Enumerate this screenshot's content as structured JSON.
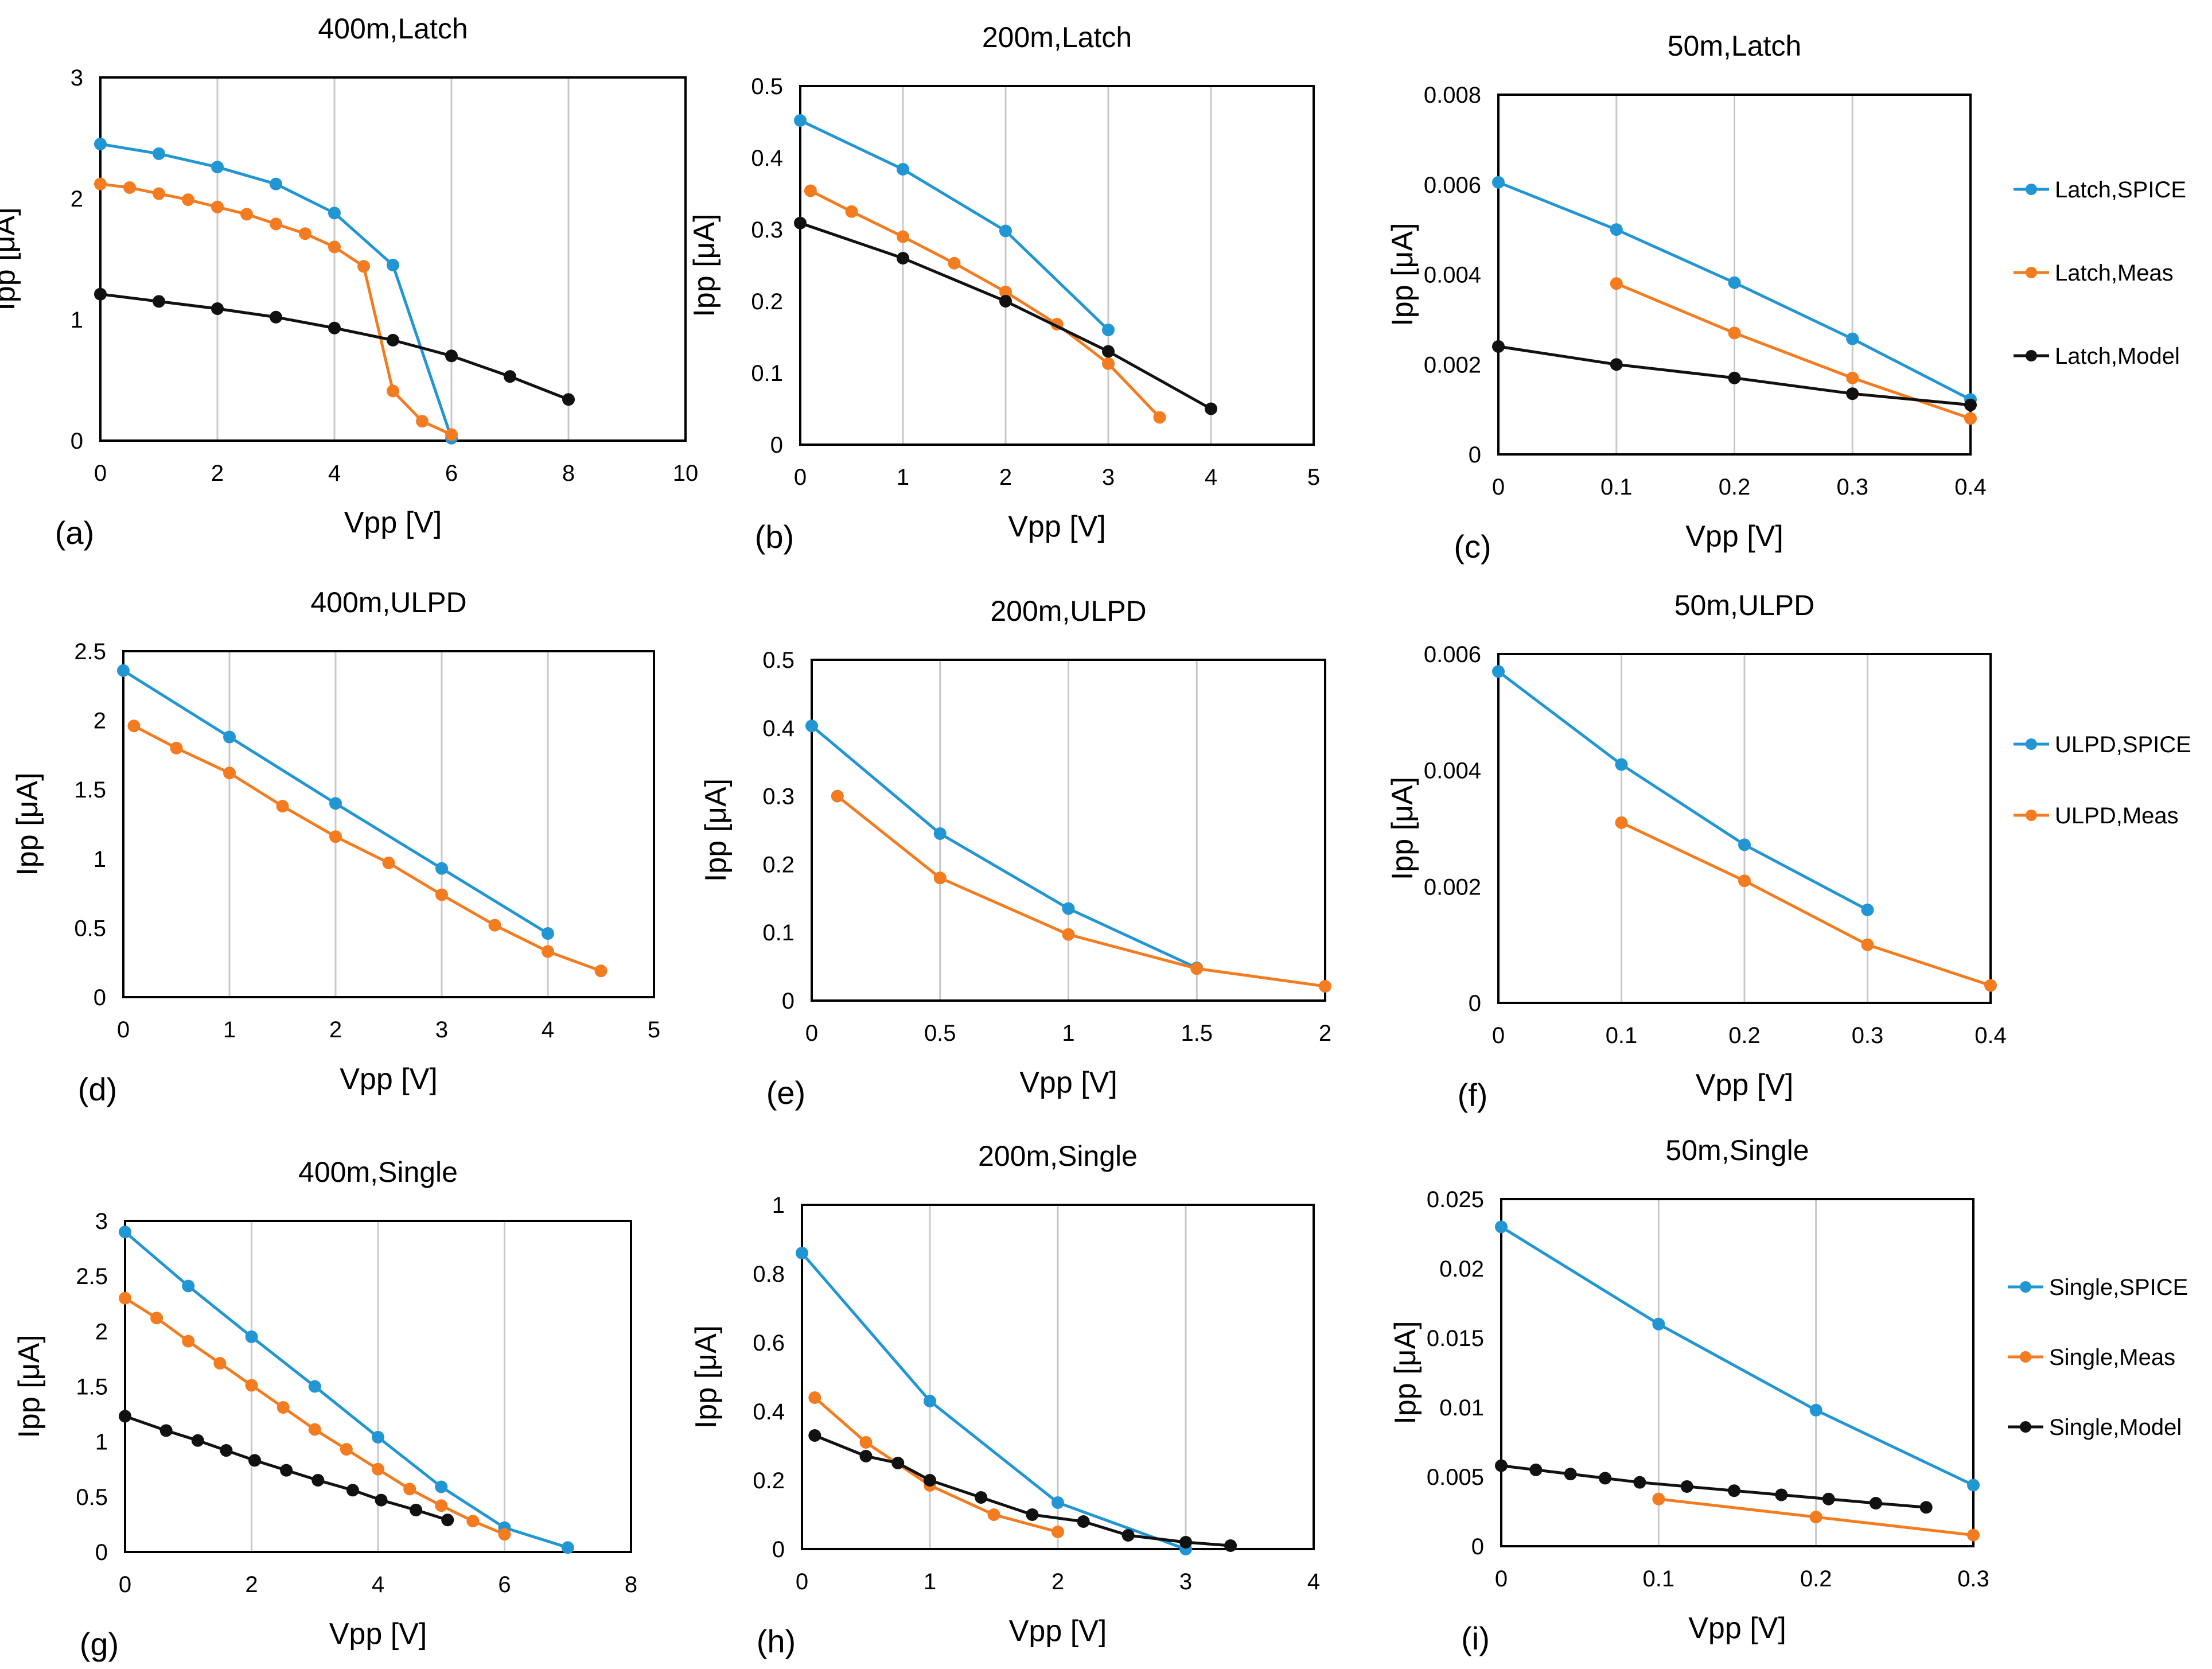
{
  "series_colors": {
    "SPICE": "#2196D3",
    "Meas": "#F47C20",
    "Model": "#111111"
  },
  "legends": [
    {
      "entries": [
        {
          "label": "Latch,SPICE",
          "key": "SPICE"
        },
        {
          "label": "Latch,Meas",
          "key": "Meas"
        },
        {
          "label": "Latch,Model",
          "key": "Model"
        }
      ]
    },
    {
      "entries": [
        {
          "label": "ULPD,SPICE",
          "key": "SPICE"
        },
        {
          "label": "ULPD,Meas",
          "key": "Meas"
        }
      ]
    },
    {
      "entries": [
        {
          "label": "Single,SPICE",
          "key": "SPICE"
        },
        {
          "label": "Single,Meas",
          "key": "Meas"
        },
        {
          "label": "Single,Model",
          "key": "Model"
        }
      ]
    }
  ],
  "chart_data": [
    {
      "type": "line",
      "title": "400m,Latch",
      "panel": "(a)",
      "xlabel": "Vpp [V]",
      "ylabel": "Ipp [μA]",
      "xlim": [
        0,
        10
      ],
      "xticks": [
        "0",
        "2",
        "4",
        "6",
        "8",
        "10"
      ],
      "ylim": [
        0,
        3
      ],
      "yticks": [
        "0",
        "1",
        "2",
        "3"
      ],
      "series": [
        {
          "name": "Latch,SPICE",
          "key": "SPICE",
          "x": [
            0,
            1,
            2,
            3,
            4,
            5,
            6
          ],
          "y": [
            2.45,
            2.37,
            2.26,
            2.12,
            1.88,
            1.45,
            0.02
          ]
        },
        {
          "name": "Latch,Meas",
          "key": "Meas",
          "x": [
            0,
            0.5,
            1,
            1.5,
            2,
            2.5,
            3,
            3.5,
            4,
            4.5,
            5,
            5.5,
            6
          ],
          "y": [
            2.12,
            2.09,
            2.04,
            1.99,
            1.93,
            1.87,
            1.79,
            1.71,
            1.6,
            1.44,
            0.41,
            0.16,
            0.05
          ]
        },
        {
          "name": "Latch,Model",
          "key": "Model",
          "x": [
            0,
            1,
            2,
            3,
            4,
            5,
            6,
            7,
            8
          ],
          "y": [
            1.21,
            1.15,
            1.09,
            1.02,
            0.93,
            0.83,
            0.7,
            0.53,
            0.34
          ]
        }
      ]
    },
    {
      "type": "line",
      "title": "200m,Latch",
      "panel": "(b)",
      "xlabel": "Vpp [V]",
      "ylabel": "Ipp [μA]",
      "xlim": [
        0,
        5
      ],
      "xticks": [
        "0",
        "1",
        "2",
        "3",
        "4",
        "5"
      ],
      "ylim": [
        0,
        0.5
      ],
      "yticks": [
        "0",
        "0.1",
        "0.2",
        "0.3",
        "0.4",
        "0.5"
      ],
      "series": [
        {
          "name": "Latch,SPICE",
          "key": "SPICE",
          "x": [
            0,
            1,
            2,
            3
          ],
          "y": [
            0.452,
            0.384,
            0.298,
            0.16
          ]
        },
        {
          "name": "Latch,Meas",
          "key": "Meas",
          "x": [
            0.1,
            0.5,
            1,
            1.5,
            2,
            2.5,
            3,
            3.5
          ],
          "y": [
            0.354,
            0.325,
            0.29,
            0.253,
            0.213,
            0.168,
            0.113,
            0.038
          ]
        },
        {
          "name": "Latch,Model",
          "key": "Model",
          "x": [
            0,
            1,
            2,
            3,
            4
          ],
          "y": [
            0.309,
            0.26,
            0.2,
            0.13,
            0.05
          ]
        }
      ]
    },
    {
      "type": "line",
      "title": "50m,Latch",
      "panel": "(c)",
      "xlabel": "Vpp [V]",
      "ylabel": "Ipp [μA]",
      "xlim": [
        0,
        0.4
      ],
      "xticks": [
        "0",
        "0.1",
        "0.2",
        "0.3",
        "0.4"
      ],
      "ylim": [
        0,
        0.008
      ],
      "yticks": [
        "0",
        "0.002",
        "0.004",
        "0.006",
        "0.008"
      ],
      "series": [
        {
          "name": "Latch,SPICE",
          "key": "SPICE",
          "x": [
            0,
            0.1,
            0.2,
            0.3,
            0.4
          ],
          "y": [
            0.00605,
            0.005,
            0.00382,
            0.00257,
            0.00122
          ]
        },
        {
          "name": "Latch,Meas",
          "key": "Meas",
          "x": [
            0.1,
            0.2,
            0.3,
            0.4
          ],
          "y": [
            0.0038,
            0.0027,
            0.0017,
            0.0008
          ]
        },
        {
          "name": "Latch,Model",
          "key": "Model",
          "x": [
            0,
            0.1,
            0.2,
            0.3,
            0.4
          ],
          "y": [
            0.0024,
            0.002,
            0.0017,
            0.00135,
            0.0011
          ]
        }
      ]
    },
    {
      "type": "line",
      "title": "400m,ULPD",
      "panel": "(d)",
      "xlabel": "Vpp [V]",
      "ylabel": "Ipp [μA]",
      "xlim": [
        0,
        5
      ],
      "xticks": [
        "0",
        "1",
        "2",
        "3",
        "4",
        "5"
      ],
      "ylim": [
        0,
        2.5
      ],
      "yticks": [
        "0",
        "0.5",
        "1",
        "1.5",
        "2",
        "2.5"
      ],
      "series": [
        {
          "name": "ULPD,SPICE",
          "key": "SPICE",
          "x": [
            0,
            1,
            2,
            3,
            4
          ],
          "y": [
            2.36,
            1.88,
            1.4,
            0.93,
            0.46
          ]
        },
        {
          "name": "ULPD,Meas",
          "key": "Meas",
          "x": [
            0.1,
            0.5,
            1,
            1.5,
            2,
            2.5,
            3,
            3.5,
            4,
            4.5
          ],
          "y": [
            1.96,
            1.8,
            1.62,
            1.38,
            1.16,
            0.97,
            0.74,
            0.52,
            0.33,
            0.19
          ]
        }
      ]
    },
    {
      "type": "line",
      "title": "200m,ULPD",
      "panel": "(e)",
      "xlabel": "Vpp [V]",
      "ylabel": "Ipp [μA]",
      "xlim": [
        0,
        2
      ],
      "xticks": [
        "0",
        "0.5",
        "1",
        "1.5",
        "2"
      ],
      "ylim": [
        0,
        0.5
      ],
      "yticks": [
        "0",
        "0.1",
        "0.2",
        "0.3",
        "0.4",
        "0.5"
      ],
      "series": [
        {
          "name": "ULPD,SPICE",
          "key": "SPICE",
          "x": [
            0,
            0.5,
            1,
            1.5
          ],
          "y": [
            0.403,
            0.245,
            0.135,
            0.048
          ]
        },
        {
          "name": "ULPD,Meas",
          "key": "Meas",
          "x": [
            0.1,
            0.5,
            1,
            1.5,
            2
          ],
          "y": [
            0.3,
            0.18,
            0.097,
            0.047,
            0.021
          ]
        }
      ]
    },
    {
      "type": "line",
      "title": "50m,ULPD",
      "panel": "(f)",
      "xlabel": "Vpp [V]",
      "ylabel": "Ipp [μA]",
      "xlim": [
        0,
        0.4
      ],
      "xticks": [
        "0",
        "0.1",
        "0.2",
        "0.3",
        "0.4"
      ],
      "ylim": [
        0,
        0.006
      ],
      "yticks": [
        "0",
        "0.002",
        "0.004",
        "0.006"
      ],
      "series": [
        {
          "name": "ULPD,SPICE",
          "key": "SPICE",
          "x": [
            0,
            0.1,
            0.2,
            0.3
          ],
          "y": [
            0.0057,
            0.0041,
            0.00272,
            0.0016
          ]
        },
        {
          "name": "ULPD,Meas",
          "key": "Meas",
          "x": [
            0.1,
            0.2,
            0.3,
            0.4
          ],
          "y": [
            0.0031,
            0.0021,
            0.001,
            0.0003
          ]
        }
      ]
    },
    {
      "type": "line",
      "title": "400m,Single",
      "panel": "(g)",
      "xlabel": "Vpp [V]",
      "ylabel": "Ipp [μA]",
      "xlim": [
        0,
        8
      ],
      "xticks": [
        "0",
        "2",
        "4",
        "6",
        "8"
      ],
      "ylim": [
        0,
        3
      ],
      "yticks": [
        "0",
        "0.5",
        "1",
        "1.5",
        "2",
        "2.5",
        "3"
      ],
      "series": [
        {
          "name": "Single,SPICE",
          "key": "SPICE",
          "x": [
            0,
            1,
            2,
            3,
            4,
            5,
            6,
            7
          ],
          "y": [
            2.9,
            2.41,
            1.95,
            1.5,
            1.04,
            0.59,
            0.22,
            0.04
          ]
        },
        {
          "name": "Single,Meas",
          "key": "Meas",
          "x": [
            0,
            0.5,
            1,
            1.5,
            2,
            2.5,
            3,
            3.5,
            4,
            4.5,
            5,
            5.5,
            6
          ],
          "y": [
            2.3,
            2.12,
            1.91,
            1.71,
            1.51,
            1.31,
            1.11,
            0.93,
            0.75,
            0.57,
            0.42,
            0.28,
            0.16
          ]
        },
        {
          "name": "Single,Model",
          "key": "Model",
          "x": [
            0,
            0.65,
            1.15,
            1.6,
            2.05,
            2.55,
            3.05,
            3.6,
            4.05,
            4.6,
            5.1
          ],
          "y": [
            1.23,
            1.1,
            1.01,
            0.92,
            0.83,
            0.74,
            0.65,
            0.56,
            0.47,
            0.38,
            0.29
          ]
        }
      ]
    },
    {
      "type": "line",
      "title": "200m,Single",
      "panel": "(h)",
      "xlabel": "Vpp [V]",
      "ylabel": "Ipp [μA]",
      "xlim": [
        0,
        4
      ],
      "xticks": [
        "0",
        "1",
        "2",
        "3",
        "4"
      ],
      "ylim": [
        0,
        1
      ],
      "yticks": [
        "0",
        "0.2",
        "0.4",
        "0.6",
        "0.8",
        "1"
      ],
      "series": [
        {
          "name": "Single,SPICE",
          "key": "SPICE",
          "x": [
            0,
            1,
            2,
            3
          ],
          "y": [
            0.86,
            0.43,
            0.135,
            0.0
          ]
        },
        {
          "name": "Single,Meas",
          "key": "Meas",
          "x": [
            0.1,
            0.5,
            1,
            1.5,
            2
          ],
          "y": [
            0.44,
            0.31,
            0.185,
            0.1,
            0.05
          ]
        },
        {
          "name": "Single,Model",
          "key": "Model",
          "x": [
            0.1,
            0.5,
            0.75,
            1,
            1.4,
            1.8,
            2.2,
            2.55,
            3,
            3.35
          ],
          "y": [
            0.33,
            0.27,
            0.25,
            0.2,
            0.15,
            0.1,
            0.08,
            0.04,
            0.02,
            0.01
          ]
        }
      ]
    },
    {
      "type": "line",
      "title": "50m,Single",
      "panel": "(i)",
      "xlabel": "Vpp [V]",
      "ylabel": "Ipp [μA]",
      "xlim": [
        0,
        0.3
      ],
      "xticks": [
        "0",
        "0.1",
        "0.2",
        "0.3"
      ],
      "ylim": [
        0,
        0.025
      ],
      "yticks": [
        "0",
        "0.005",
        "0.01",
        "0.015",
        "0.02",
        "0.025"
      ],
      "series": [
        {
          "name": "Single,SPICE",
          "key": "SPICE",
          "x": [
            0,
            0.1,
            0.2,
            0.3
          ],
          "y": [
            0.023,
            0.016,
            0.0098,
            0.0044
          ]
        },
        {
          "name": "Single,Meas",
          "key": "Meas",
          "x": [
            0.1,
            0.2,
            0.3
          ],
          "y": [
            0.0034,
            0.0021,
            0.0008
          ]
        },
        {
          "name": "Single,Model",
          "key": "Model",
          "x": [
            0,
            0.022,
            0.044,
            0.066,
            0.088,
            0.118,
            0.148,
            0.178,
            0.208,
            0.238,
            0.27
          ],
          "y": [
            0.0058,
            0.0055,
            0.0052,
            0.0049,
            0.0046,
            0.0043,
            0.004,
            0.0037,
            0.0034,
            0.0031,
            0.0028
          ]
        }
      ]
    }
  ]
}
